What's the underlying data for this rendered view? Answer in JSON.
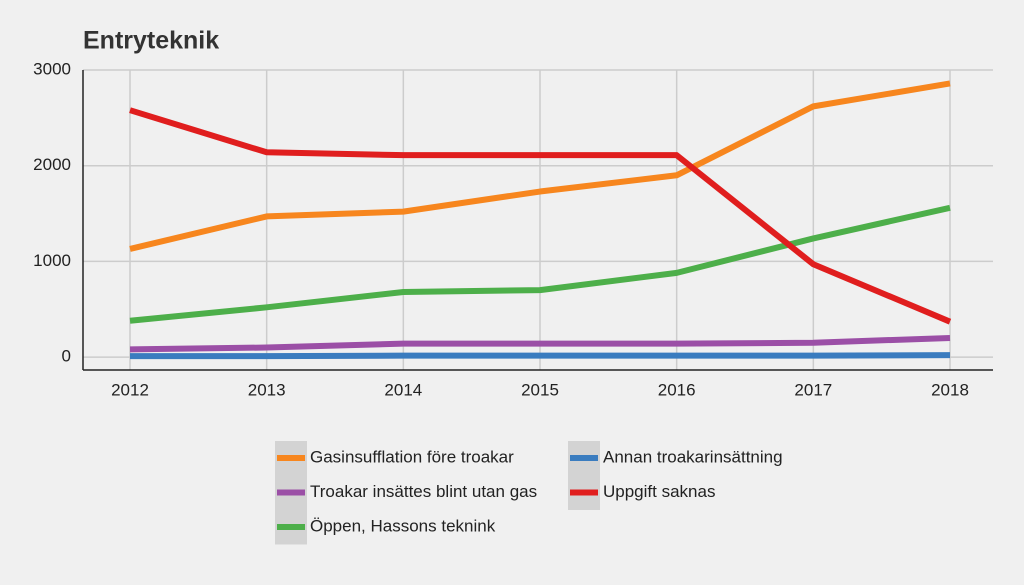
{
  "chart_data": {
    "type": "line",
    "title": "Entryteknik",
    "categories": [
      "2012",
      "2013",
      "2014",
      "2015",
      "2016",
      "2017",
      "2018"
    ],
    "series": [
      {
        "name": "Gasinsufflation före troakar",
        "color": "#f7861e",
        "values": [
          1130,
          1470,
          1520,
          1730,
          1900,
          2620,
          2860
        ]
      },
      {
        "name": "Annan troakarinsättning",
        "color": "#3a7cbf",
        "values": [
          10,
          10,
          15,
          15,
          15,
          15,
          20
        ]
      },
      {
        "name": "Troakar insättes blint utan gas",
        "color": "#9b4fa6",
        "values": [
          80,
          100,
          140,
          140,
          140,
          150,
          200
        ]
      },
      {
        "name": "Uppgift saknas",
        "color": "#e01e1e",
        "values": [
          2580,
          2140,
          2110,
          2110,
          2110,
          970,
          370
        ]
      },
      {
        "name": "Öppen, Hassons teknink",
        "color": "#4daf4a",
        "values": [
          380,
          520,
          680,
          700,
          880,
          1240,
          1560
        ]
      }
    ],
    "ylim": [
      -135,
      3000
    ],
    "yticks": [
      0,
      1000,
      2000,
      3000
    ],
    "grid": true
  }
}
